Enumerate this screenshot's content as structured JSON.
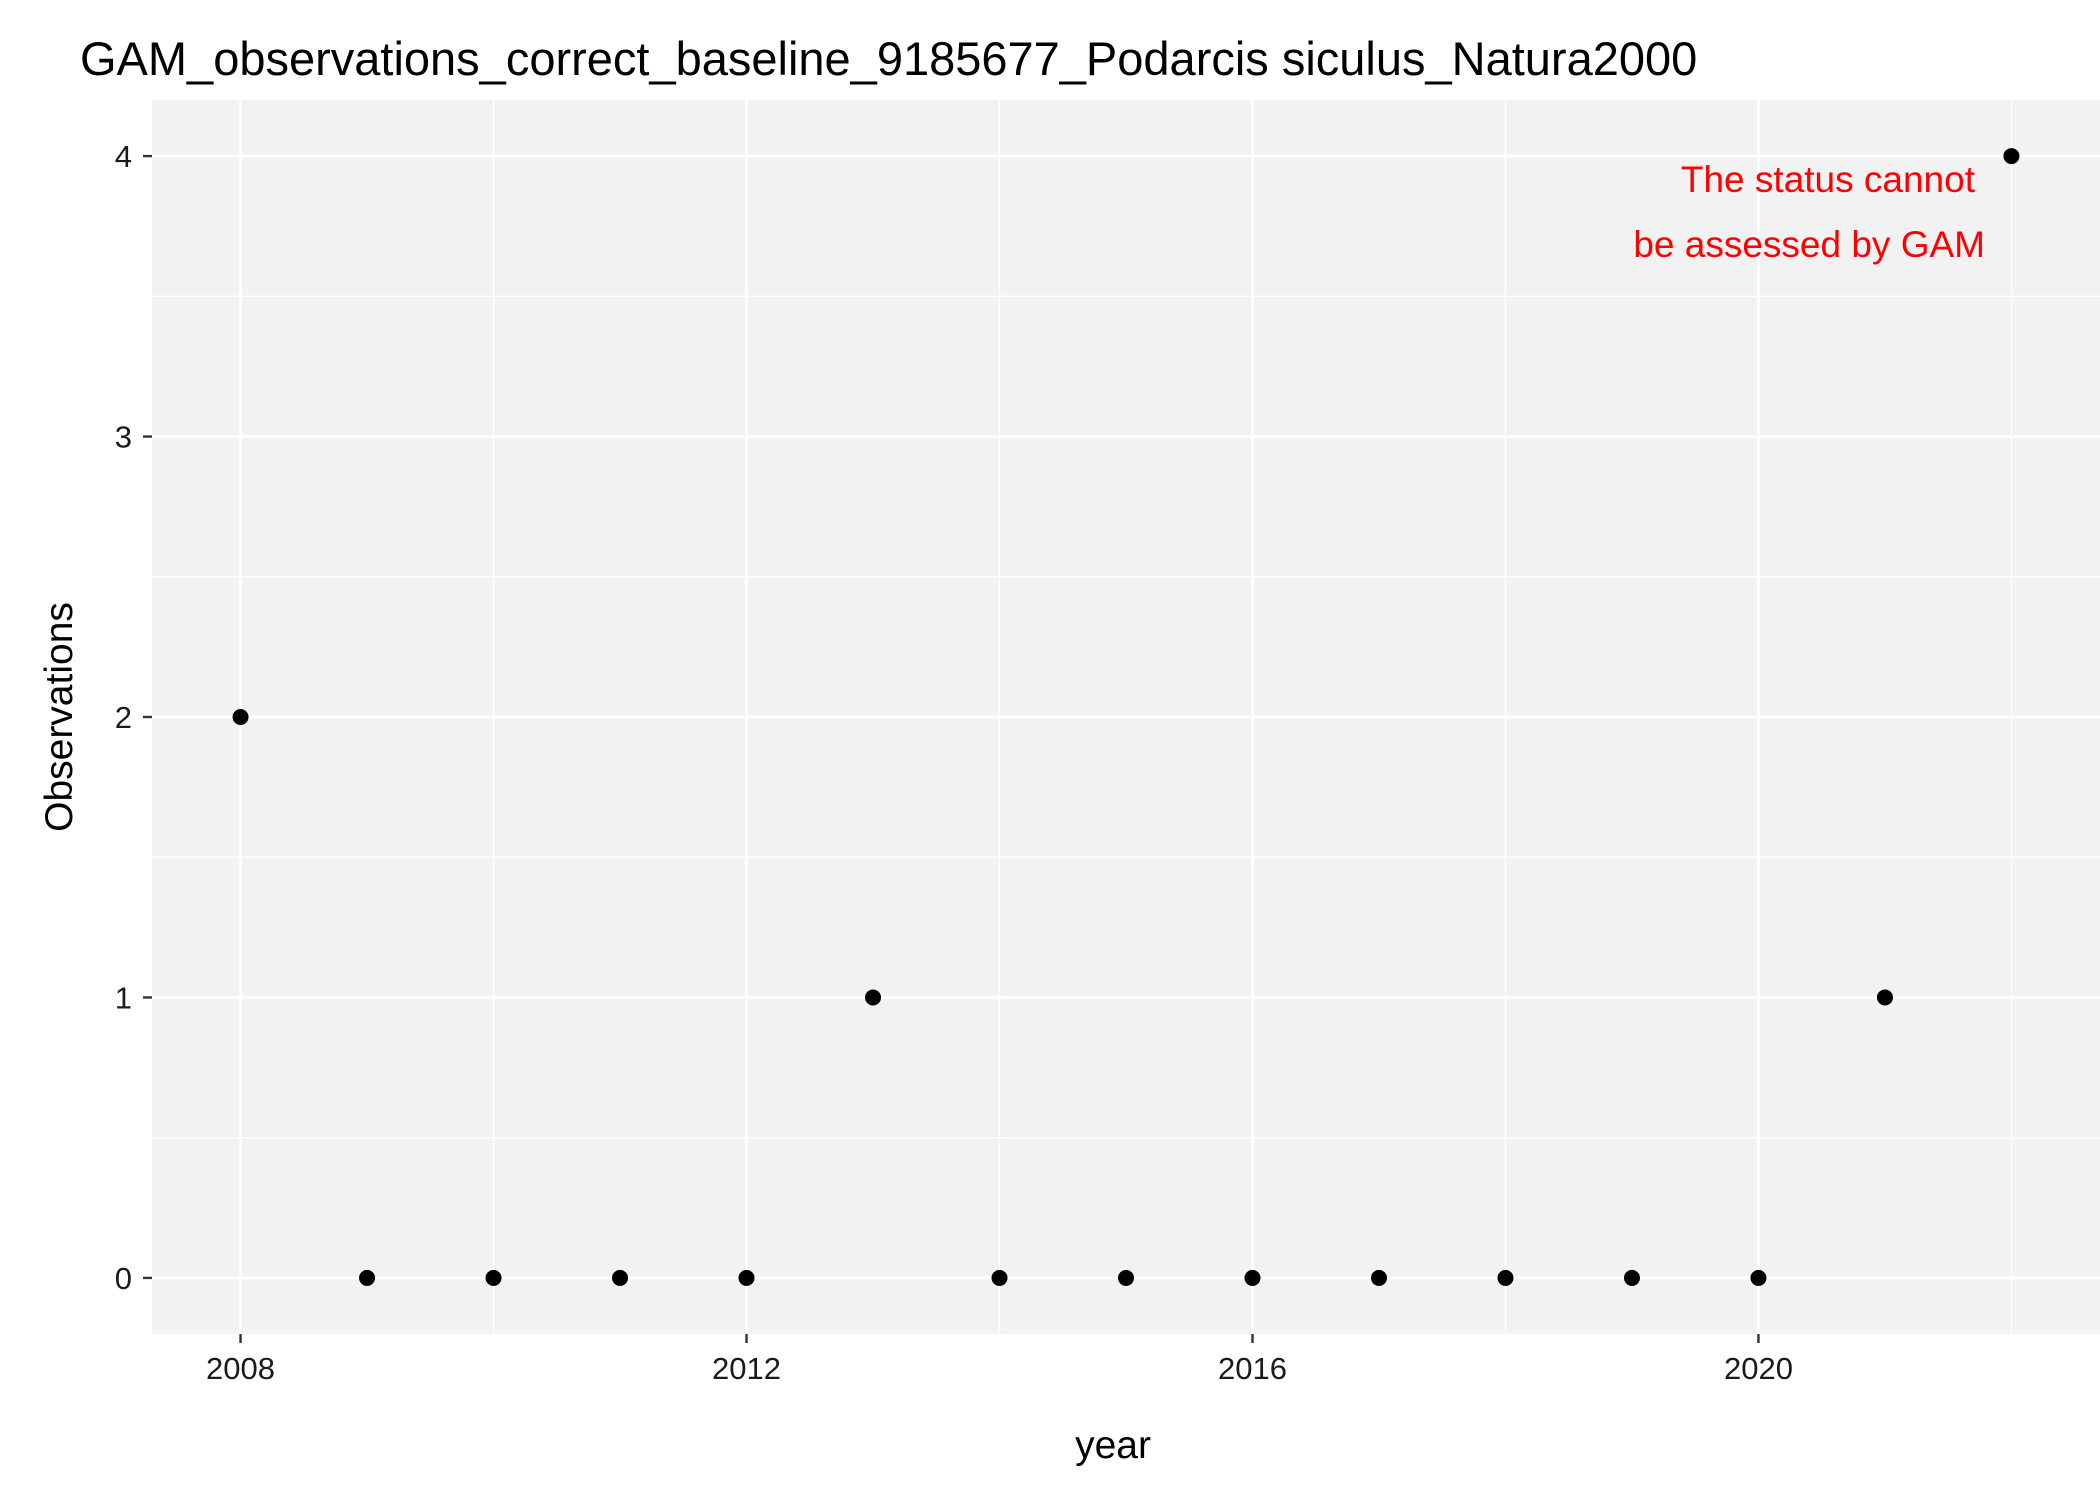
{
  "chart_data": {
    "type": "scatter",
    "title": "GAM_observations_correct_baseline_9185677_Podarcis siculus_Natura2000",
    "xlabel": "year",
    "ylabel": "Observations",
    "xlim": [
      2007.3,
      2022.7
    ],
    "ylim": [
      -0.2,
      4.2
    ],
    "x_ticks": [
      2008,
      2012,
      2016,
      2020
    ],
    "y_ticks": [
      0,
      1,
      2,
      3,
      4
    ],
    "x_minor": [
      2010,
      2014,
      2018,
      2022
    ],
    "y_minor": [
      0.5,
      1.5,
      2.5,
      3.5
    ],
    "grid": true,
    "legend": "none",
    "point_color": "#000000",
    "panel_background": "#f2f2f2",
    "grid_color": "#ffffff",
    "series": [
      {
        "x": [
          2008,
          2009,
          2010,
          2011,
          2012,
          2013,
          2014,
          2015,
          2016,
          2017,
          2018,
          2019,
          2020,
          2021,
          2022
        ],
        "y": [
          2,
          0,
          0,
          0,
          0,
          1,
          0,
          0,
          0,
          0,
          0,
          0,
          0,
          1,
          4
        ]
      }
    ],
    "annotation": {
      "lines": [
        "The status cannot",
        "be assessed by GAM"
      ],
      "color": "#ff0000"
    }
  }
}
